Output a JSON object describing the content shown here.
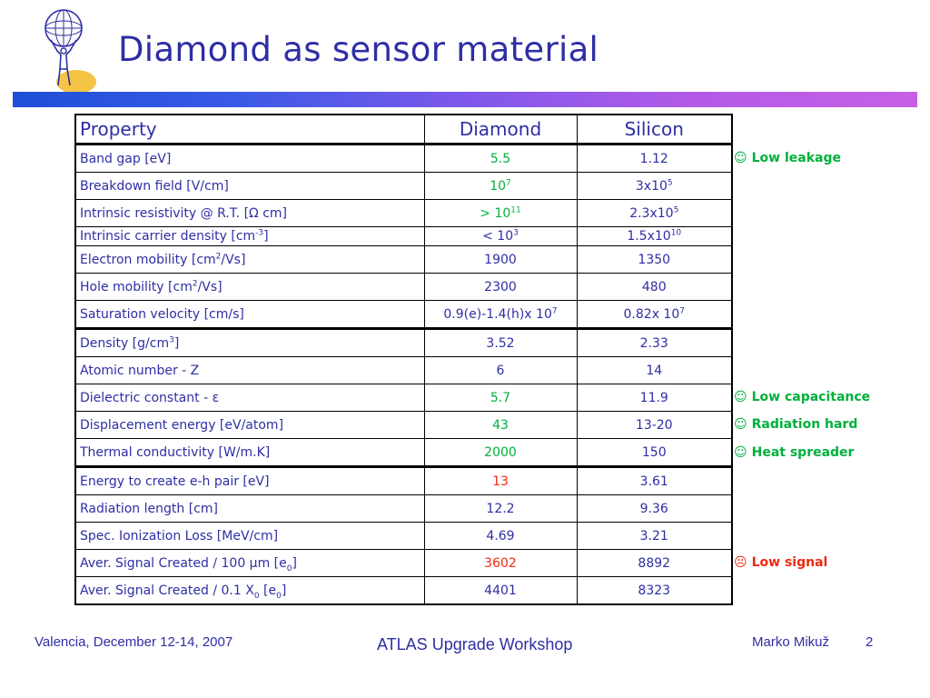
{
  "slide": {
    "title": "Diamond as sensor material"
  },
  "table": {
    "headers": [
      "Property",
      "Diamond",
      "Silicon"
    ],
    "rows": [
      {
        "property": "Band gap [eV]",
        "diamond": "5.5",
        "silicon": "1.12",
        "diamond_color": "green"
      },
      {
        "property": "Breakdown field [V/cm]",
        "diamond": "10",
        "diamond_sup": "7",
        "silicon": "3x10",
        "silicon_sup": "5",
        "diamond_color": "green"
      },
      {
        "property": "Intrinsic resistivity @ R.T. [Ω cm]",
        "diamond": "> 10",
        "diamond_sup": "11",
        "silicon": "2.3x10",
        "silicon_sup": "5",
        "diamond_color": "green"
      },
      {
        "property": "Intrinsic carrier density [cm",
        "property_sup": "-3",
        "property_tail": "]",
        "diamond": "< 10",
        "diamond_sup": "3",
        "silicon": "1.5x10",
        "silicon_sup": "10"
      },
      {
        "property": "Electron mobility [cm",
        "property_sup": "2",
        "property_tail": "/Vs]",
        "diamond": "1900",
        "silicon": "1350"
      },
      {
        "property": "Hole mobility [cm",
        "property_sup": "2",
        "property_tail": "/Vs]",
        "diamond": "2300",
        "silicon": "480"
      },
      {
        "property": "Saturation velocity [cm/s]",
        "diamond": "0.9(e)-1.4(h)x 10",
        "diamond_sup": "7",
        "silicon": "0.82x 10",
        "silicon_sup": "7"
      },
      {
        "property": "Density [g/cm",
        "property_sup": "3",
        "property_tail": "]",
        "diamond": "3.52",
        "silicon": "2.33"
      },
      {
        "property": "Atomic number - Z",
        "diamond": "6",
        "silicon": "14"
      },
      {
        "property": "Dielectric constant - ε",
        "diamond": "5.7",
        "silicon": "11.9",
        "diamond_color": "green"
      },
      {
        "property": "Displacement energy [eV/atom]",
        "diamond": "43",
        "silicon": "13-20",
        "diamond_color": "green"
      },
      {
        "property": "Thermal conductivity [W/m.K]",
        "diamond": "2000",
        "silicon": "150",
        "diamond_color": "green"
      },
      {
        "property": "Energy to create e-h pair [eV]",
        "diamond": "13",
        "silicon": "3.61",
        "diamond_color": "red"
      },
      {
        "property": "Radiation length [cm]",
        "diamond": "12.2",
        "silicon": "9.36"
      },
      {
        "property": "Spec. Ionization Loss [MeV/cm]",
        "diamond": "4.69",
        "silicon": "3.21"
      },
      {
        "property": "Aver. Signal Created / 100 µm [e",
        "property_sub": "0",
        "property_tail": "]",
        "diamond": "3602",
        "silicon": "8892",
        "diamond_color": "red"
      },
      {
        "property": "Aver. Signal Created / 0.1 X",
        "property_sub": "0",
        "property_tail": " [e",
        "property_sub2": "0",
        "property_tail2": "]",
        "diamond": "4401",
        "silicon": "8323"
      }
    ]
  },
  "annotations": [
    {
      "icon": "☺",
      "icon_name": "smiley-icon",
      "text": "Low leakage",
      "color": "green"
    },
    {
      "icon": "☺",
      "icon_name": "smiley-icon",
      "text": "Low capacitance",
      "color": "green"
    },
    {
      "icon": "☺",
      "icon_name": "smiley-icon",
      "text": "Radiation hard",
      "color": "green"
    },
    {
      "icon": "☺",
      "icon_name": "smiley-icon",
      "text": "Heat spreader",
      "color": "green"
    },
    {
      "icon": "☹",
      "icon_name": "frown-icon",
      "text": "Low signal",
      "color": "red"
    }
  ],
  "footer": {
    "location": "Valencia, December 12-14, 2007",
    "event": "ATLAS Upgrade Workshop",
    "author": "Marko Mikuž",
    "page": "2"
  },
  "colors": {
    "text": "#2e2ea5",
    "good": "#00b03c",
    "bad": "#f02a10"
  }
}
